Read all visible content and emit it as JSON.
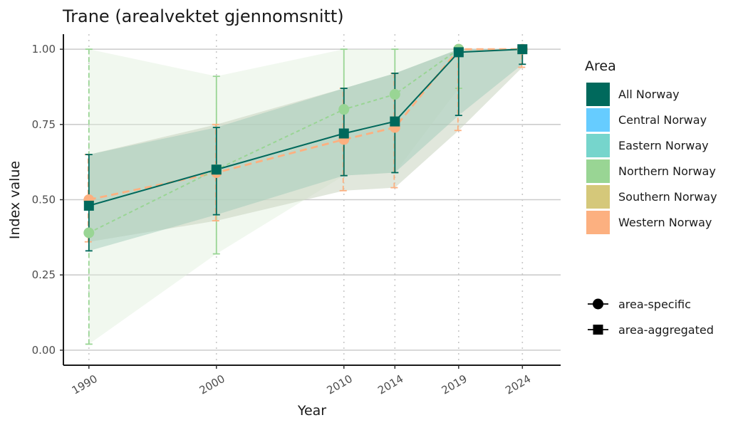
{
  "chart_data": {
    "type": "line",
    "title": "Trane (arealvektet gjennomsnitt)",
    "xlabel": "Year",
    "ylabel": "Index value",
    "x": [
      1990,
      2000,
      2010,
      2014,
      2019,
      2024
    ],
    "ylim": [
      0,
      1
    ],
    "yticks": [
      "0.00",
      "0.25",
      "0.50",
      "0.75",
      "1.00"
    ],
    "grid": "horizontal solid, vertical dotted",
    "legend_position": "right",
    "legend_title": "Area",
    "series": [
      {
        "name": "All Norway",
        "color": "#00695c",
        "shape": "area-aggregated",
        "x": [
          1990,
          2000,
          2010,
          2014,
          2019,
          2024
        ],
        "values": [
          0.48,
          0.6,
          0.72,
          0.76,
          0.99,
          1.0
        ],
        "lower": [
          0.33,
          0.45,
          0.58,
          0.59,
          0.78,
          0.95
        ],
        "upper": [
          0.65,
          0.74,
          0.87,
          0.92,
          1.0,
          1.0
        ]
      },
      {
        "name": "Central Norway",
        "color": "#66ccff",
        "shape": "area-specific",
        "x": [],
        "values": []
      },
      {
        "name": "Eastern Norway",
        "color": "#76d5cc",
        "shape": "area-specific",
        "x": [],
        "values": []
      },
      {
        "name": "Northern Norway",
        "color": "#99d594",
        "shape": "area-specific",
        "x": [
          1990,
          2000,
          2010,
          2014,
          2019
        ],
        "values": [
          0.39,
          0.6,
          0.8,
          0.85,
          1.0
        ],
        "lower": [
          0.02,
          0.32,
          0.58,
          0.59,
          0.87
        ],
        "upper": [
          1.0,
          0.91,
          1.0,
          1.0,
          1.0
        ]
      },
      {
        "name": "Southern Norway",
        "color": "#d5c87a",
        "shape": "area-specific",
        "x": [],
        "values": []
      },
      {
        "name": "Western Norway",
        "color": "#fcb080",
        "shape": "area-specific",
        "x": [
          1990,
          2000,
          2010,
          2014,
          2019,
          2024
        ],
        "values": [
          0.5,
          0.59,
          0.7,
          0.74,
          1.0,
          1.0
        ],
        "lower": [
          0.36,
          0.43,
          0.53,
          0.54,
          0.73,
          0.94
        ],
        "upper": [
          0.65,
          0.75,
          0.87,
          0.92,
          1.0,
          1.0
        ]
      }
    ],
    "shape_legend": [
      "area-specific",
      "area-aggregated"
    ]
  }
}
